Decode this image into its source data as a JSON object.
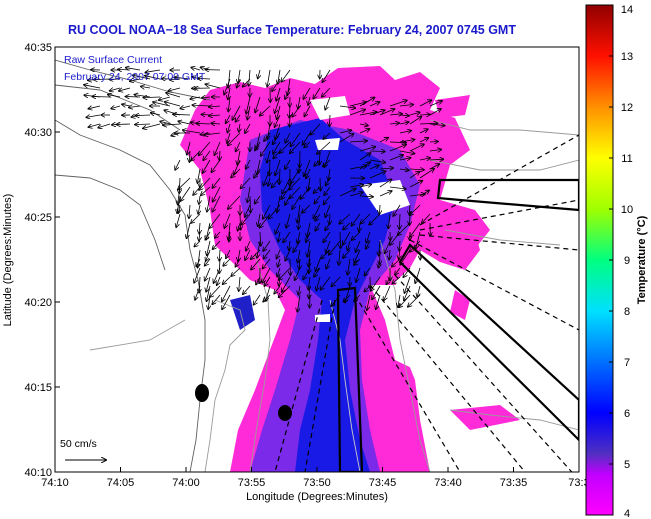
{
  "chart_data": {
    "type": "heatmap",
    "title": "RU COOL  NOAA−18  Sea Surface Temperature:  February 24, 2007 0745 GMT",
    "xlabel": "Longitude (Degrees:Minutes)",
    "ylabel": "Latitude (Degrees:Minutes)",
    "x_ticks": [
      "74:10",
      "74:05",
      "74:00",
      "73:55",
      "73:50",
      "73:45",
      "73:40",
      "73:35",
      "73:3"
    ],
    "y_ticks": [
      "40:35",
      "40:30",
      "40:25",
      "40:20",
      "40:15",
      "40:10"
    ],
    "xlim": [
      -74.1667,
      -73.5
    ],
    "ylim": [
      40.1667,
      40.5833
    ],
    "annotation_line1": "Raw Surface Current",
    "annotation_line2": "February 24, 2007 07:00 GMT",
    "scale_label": "50 cm/s",
    "colorbar": {
      "label": "Temperature (°C)",
      "min": 4,
      "max": 14,
      "ticks": [
        "4",
        "5",
        "6",
        "7",
        "8",
        "9",
        "10",
        "11",
        "12",
        "13",
        "14"
      ]
    },
    "sst_range_shown_celsius": [
      4,
      6
    ]
  },
  "colors": {
    "title": "#1a1acc",
    "annotation": "#1a1acc",
    "axis": "#000000",
    "warm_sst": "#ff2ad8",
    "cold_sst": "#1a1ae6",
    "mid_sst": "#7a2ae8",
    "land_bathymetry": "#606060"
  }
}
